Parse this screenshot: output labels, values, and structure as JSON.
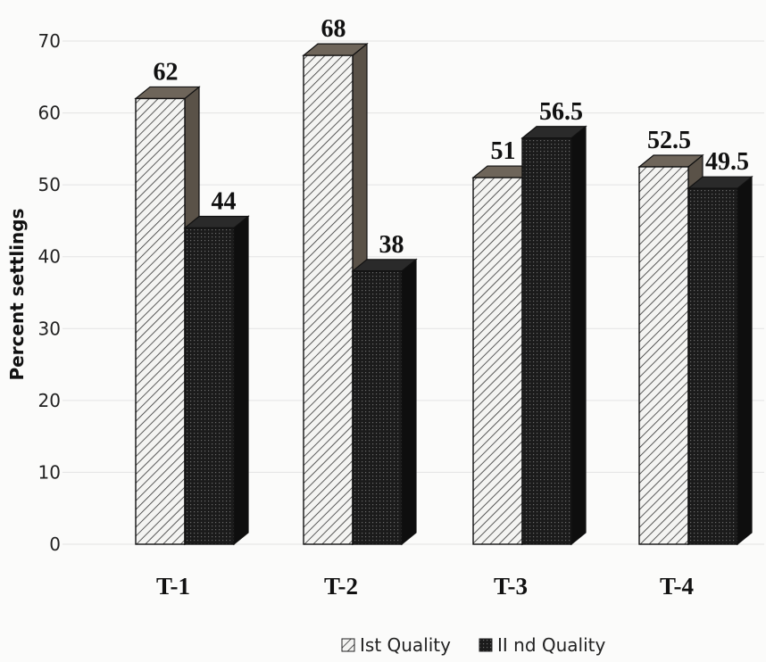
{
  "chart_data": {
    "type": "bar",
    "categories": [
      "T-1",
      "T-2",
      "T-3",
      "T-4"
    ],
    "series": [
      {
        "name": "Ist Quality",
        "values": [
          62,
          68,
          51,
          52.5
        ]
      },
      {
        "name": "II nd Quality",
        "values": [
          44,
          38,
          56.5,
          49.5
        ]
      }
    ],
    "value_labels": [
      [
        "62",
        "68",
        "51",
        "52.5"
      ],
      [
        "44",
        "38",
        "56.5",
        "49.5"
      ]
    ],
    "ylabel": "Percent settlings",
    "ylim": [
      0,
      70
    ],
    "yticks": [
      "0",
      "10",
      "20",
      "30",
      "40",
      "50",
      "60",
      "70"
    ],
    "grid": true,
    "legend_position": "bottom",
    "colors": {
      "series1": "#f2f2f2",
      "series2": "#1e1e1e",
      "side1": "#5a5248",
      "side2": "#0e0e0e"
    }
  }
}
